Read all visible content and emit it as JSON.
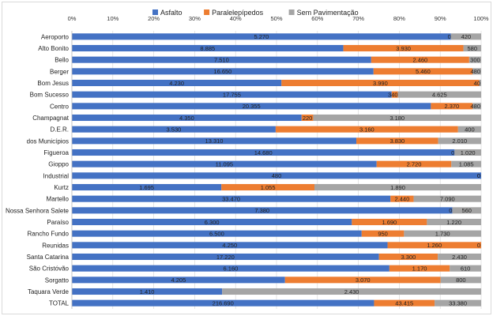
{
  "chart_data": {
    "type": "bar",
    "orientation": "horizontal",
    "stacked": "percent",
    "title": "",
    "xlabel": "",
    "ylabel": "",
    "xlim": [
      0,
      100
    ],
    "x_ticks": [
      "0%",
      "10%",
      "20%",
      "30%",
      "40%",
      "50%",
      "60%",
      "70%",
      "80%",
      "90%",
      "100%"
    ],
    "grid": true,
    "legend_position": "top",
    "categories": [
      "Aeroporto",
      "Alto Bonito",
      "Bello",
      "Berger",
      "Bom Jesus",
      "Bom Sucesso",
      "Centro",
      "Champagnat",
      "D.E.R.",
      "dos Municípios",
      "Figueroa",
      "Gioppo",
      "Industrial",
      "Kurtz",
      "Martello",
      "Nossa Senhora Salete",
      "Paraíso",
      "Rancho Fundo",
      "Reunidas",
      "Santa Catarina",
      "São Cristóvão",
      "Sorgatto",
      "Taquara Verde",
      "TOTAL"
    ],
    "series": [
      {
        "name": "Asfalto",
        "color": "#4472c4",
        "values": [
          5270,
          8885,
          7510,
          16650,
          4230,
          17755,
          20355,
          4350,
          3530,
          13310,
          14680,
          11095,
          480,
          1695,
          33470,
          7380,
          6300,
          6500,
          4250,
          17220,
          6160,
          4205,
          1410,
          216690
        ],
        "labels": [
          "5.270",
          "8.885",
          "7.510",
          "16.650",
          "4.230",
          "17.755",
          "20.355",
          "4.350",
          "3.530",
          "13.310",
          "14.680",
          "11.095",
          "480",
          "1.695",
          "33.470",
          "7.380",
          "6.300",
          "6.500",
          "4.250",
          "17.220",
          "6.160",
          "4.205",
          "1.410",
          "216.690"
        ]
      },
      {
        "name": "Paralelepípedos",
        "color": "#ed7d31",
        "values": [
          0,
          3930,
          2460,
          5460,
          3990,
          340,
          2370,
          220,
          3160,
          3830,
          0,
          2720,
          0,
          1055,
          2440,
          0,
          1690,
          950,
          1260,
          3300,
          1170,
          3070,
          0,
          43415
        ],
        "labels": [
          "0",
          "3.930",
          "2.460",
          "5.460",
          "3.990",
          "340",
          "2.370",
          "220",
          "3.160",
          "3.830",
          "0",
          "2.720",
          "0",
          "1.055",
          "2.440",
          "0",
          "1.690",
          "950",
          "1.260",
          "3.300",
          "1.170",
          "3.070",
          "",
          "43.415"
        ]
      },
      {
        "name": "Sem Pavimentação",
        "color": "#a5a5a5",
        "values": [
          420,
          580,
          300,
          480,
          40,
          4625,
          480,
          3180,
          400,
          2010,
          1020,
          1085,
          0,
          1890,
          7090,
          560,
          1220,
          1730,
          0,
          2430,
          610,
          800,
          2430,
          33380
        ],
        "labels": [
          "420",
          "580",
          "300",
          "480",
          "40",
          "4.625",
          "480",
          "3.180",
          "400",
          "2.010",
          "1.020",
          "1.085",
          "0",
          "1.890",
          "7.090",
          "560",
          "1.220",
          "1.730",
          "0",
          "2.430",
          "610",
          "800",
          "2.430",
          "33.380"
        ]
      }
    ]
  }
}
